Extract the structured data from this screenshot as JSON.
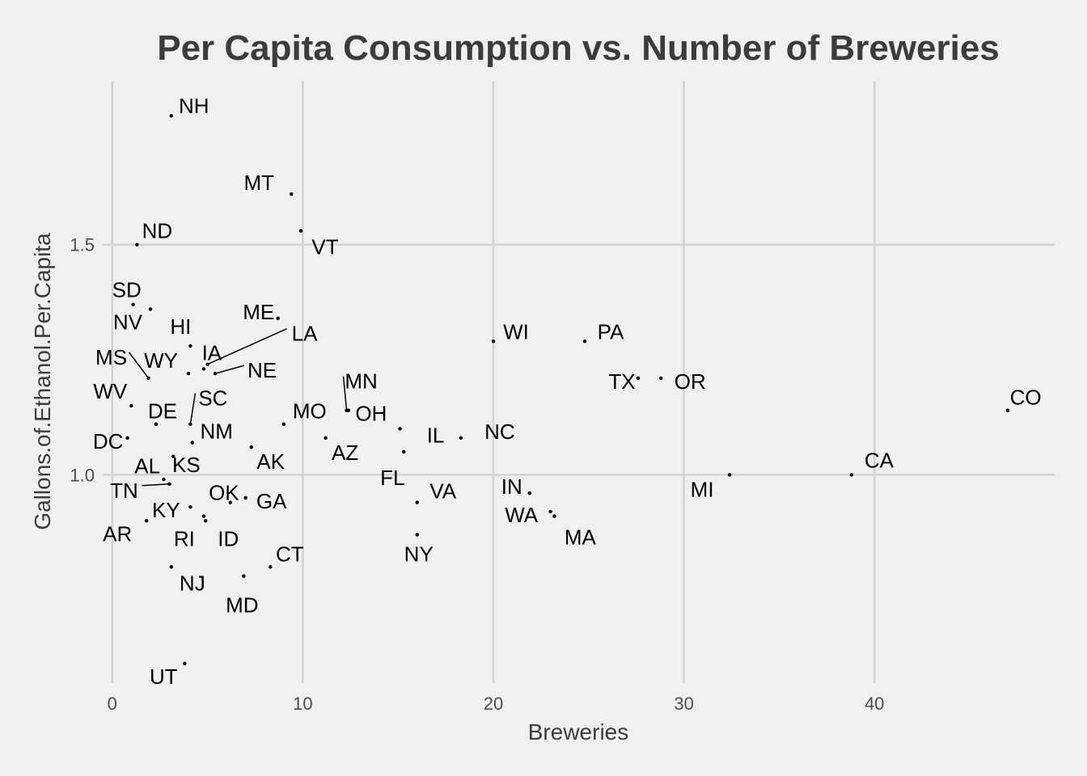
{
  "chart_data": {
    "type": "scatter",
    "title": "Per Capita Consumption vs. Number of Breweries",
    "xlabel": "Breweries",
    "ylabel": "Gallons.of.Ethanol.Per.Capita",
    "xlim": [
      -0.5,
      49.5
    ],
    "ylim": [
      0.53,
      1.87
    ],
    "xticks": [
      0,
      10,
      20,
      30,
      40
    ],
    "yticks": [
      1.0,
      1.5
    ],
    "ytick_labels": [
      "1.0",
      "1.5"
    ],
    "grid": true,
    "legend": "none",
    "point_color": "#000000",
    "points": [
      {
        "label": "NH",
        "x": 3.1,
        "y": 1.78
      },
      {
        "label": "MT",
        "x": 9.4,
        "y": 1.61
      },
      {
        "label": "VT",
        "x": 9.9,
        "y": 1.53
      },
      {
        "label": "ND",
        "x": 1.3,
        "y": 1.5
      },
      {
        "label": "SD",
        "x": 1.1,
        "y": 1.37
      },
      {
        "label": "NV",
        "x": 2.0,
        "y": 1.36
      },
      {
        "label": "ME",
        "x": 8.7,
        "y": 1.34
      },
      {
        "label": "HI",
        "x": 4.1,
        "y": 1.28
      },
      {
        "label": "WI",
        "x": 20.0,
        "y": 1.29
      },
      {
        "label": "PA",
        "x": 24.8,
        "y": 1.29
      },
      {
        "label": "LA",
        "x": 5.0,
        "y": 1.24
      },
      {
        "label": "IA",
        "x": 4.8,
        "y": 1.23
      },
      {
        "label": "NE",
        "x": 5.4,
        "y": 1.22
      },
      {
        "label": "WY",
        "x": 4.0,
        "y": 1.22
      },
      {
        "label": "MS",
        "x": 1.9,
        "y": 1.21
      },
      {
        "label": "TX",
        "x": 27.6,
        "y": 1.21
      },
      {
        "label": "OR",
        "x": 28.8,
        "y": 1.21
      },
      {
        "label": "WV",
        "x": 1.0,
        "y": 1.15
      },
      {
        "label": "CO",
        "x": 47.0,
        "y": 1.14
      },
      {
        "label": "MN",
        "x": 12.3,
        "y": 1.14
      },
      {
        "label": "OH",
        "x": 12.4,
        "y": 1.14
      },
      {
        "label": "DE",
        "x": 2.3,
        "y": 1.11
      },
      {
        "label": "SC",
        "x": 4.1,
        "y": 1.11
      },
      {
        "label": "MO",
        "x": 9.0,
        "y": 1.11
      },
      {
        "label": "IL",
        "x": 15.1,
        "y": 1.1
      },
      {
        "label": "DC",
        "x": 0.8,
        "y": 1.08
      },
      {
        "label": "NC",
        "x": 18.3,
        "y": 1.08
      },
      {
        "label": "NM",
        "x": 4.2,
        "y": 1.07
      },
      {
        "label": "AZ",
        "x": 11.2,
        "y": 1.08
      },
      {
        "label": "AK",
        "x": 7.3,
        "y": 1.06
      },
      {
        "label": "FL",
        "x": 15.3,
        "y": 1.05
      },
      {
        "label": "AL",
        "x": 3.2,
        "y": 1.04
      },
      {
        "label": "KS",
        "x": 2.7,
        "y": 0.99
      },
      {
        "label": "CA",
        "x": 38.8,
        "y": 1.0
      },
      {
        "label": "MI",
        "x": 32.4,
        "y": 1.0
      },
      {
        "label": "TN",
        "x": 3.0,
        "y": 0.98
      },
      {
        "label": "GA",
        "x": 7.0,
        "y": 0.95
      },
      {
        "label": "VA",
        "x": 16.0,
        "y": 0.94
      },
      {
        "label": "IN",
        "x": 21.9,
        "y": 0.96
      },
      {
        "label": "KY",
        "x": 4.1,
        "y": 0.93
      },
      {
        "label": "OK",
        "x": 6.2,
        "y": 0.94
      },
      {
        "label": "WA",
        "x": 23.0,
        "y": 0.92
      },
      {
        "label": "MA",
        "x": 23.2,
        "y": 0.91
      },
      {
        "label": "RI",
        "x": 4.8,
        "y": 0.91
      },
      {
        "label": "ID",
        "x": 4.9,
        "y": 0.9
      },
      {
        "label": "AR",
        "x": 1.8,
        "y": 0.9
      },
      {
        "label": "NY",
        "x": 16.0,
        "y": 0.87
      },
      {
        "label": "CT",
        "x": 8.3,
        "y": 0.8
      },
      {
        "label": "NJ",
        "x": 3.1,
        "y": 0.8
      },
      {
        "label": "MD",
        "x": 6.9,
        "y": 0.78
      },
      {
        "label": "UT",
        "x": 3.8,
        "y": 0.59
      }
    ]
  }
}
